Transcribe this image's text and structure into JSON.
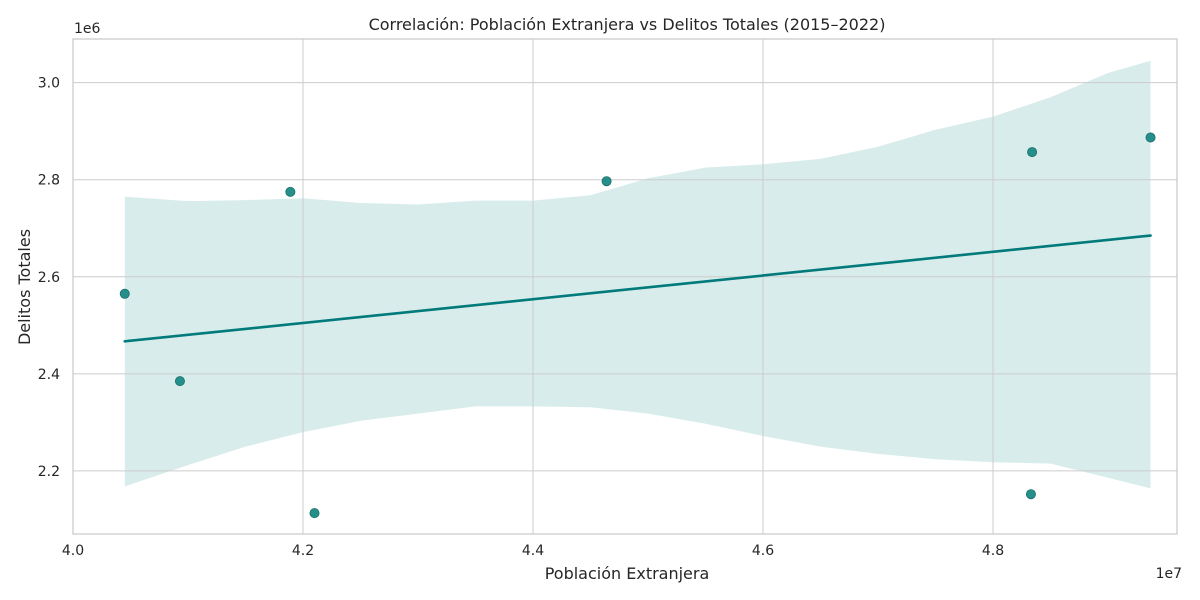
{
  "chart_data": {
    "type": "scatter",
    "title": "Correlación: Población Extranjera vs Delitos Totales (2015–2022)",
    "xlabel": "Población Extranjera",
    "ylabel": "Delitos Totales",
    "x_offset_label": "1e7",
    "y_offset_label": "1e6",
    "xlim": [
      40000000,
      49600000
    ],
    "ylim": [
      2070000,
      3090000
    ],
    "grid": true,
    "x_ticks": [
      {
        "value": 40000000,
        "label": "4.0"
      },
      {
        "value": 42000000,
        "label": "4.2"
      },
      {
        "value": 44000000,
        "label": "4.4"
      },
      {
        "value": 46000000,
        "label": "4.6"
      },
      {
        "value": 48000000,
        "label": "4.8"
      }
    ],
    "y_ticks": [
      {
        "value": 2200000,
        "label": "2.2"
      },
      {
        "value": 2400000,
        "label": "2.4"
      },
      {
        "value": 2600000,
        "label": "2.6"
      },
      {
        "value": 2800000,
        "label": "2.8"
      },
      {
        "value": 3000000,
        "label": "3.0"
      }
    ],
    "points": [
      {
        "x": 40450000,
        "y": 2565000
      },
      {
        "x": 40930000,
        "y": 2385000
      },
      {
        "x": 41890000,
        "y": 2775000
      },
      {
        "x": 42100000,
        "y": 2113000
      },
      {
        "x": 44640000,
        "y": 2797000
      },
      {
        "x": 48330000,
        "y": 2152000
      },
      {
        "x": 48340000,
        "y": 2857000
      },
      {
        "x": 49370000,
        "y": 2887000
      }
    ],
    "regression": {
      "x": [
        40450000,
        49370000
      ],
      "y": [
        2467000,
        2685000
      ]
    },
    "confidence_band": {
      "x": [
        40450000,
        41000000,
        41500000,
        42000000,
        42500000,
        43000000,
        43500000,
        44000000,
        44500000,
        45000000,
        45500000,
        46000000,
        46500000,
        47000000,
        47500000,
        48000000,
        48500000,
        49000000,
        49370000
      ],
      "upper": [
        2765000,
        2756000,
        2758000,
        2762000,
        2752000,
        2749000,
        2757000,
        2757000,
        2768000,
        2803000,
        2825000,
        2832000,
        2843000,
        2868000,
        2903000,
        2930000,
        2970000,
        3020000,
        3045000
      ],
      "lower": [
        2168000,
        2212000,
        2250000,
        2280000,
        2303000,
        2318000,
        2333000,
        2333000,
        2331000,
        2318000,
        2297000,
        2272000,
        2250000,
        2235000,
        2224000,
        2218000,
        2215000,
        2186000,
        2164000
      ]
    },
    "colors": {
      "point": "#258f8a",
      "line": "#007a7a",
      "band": "#d6ebea",
      "grid": "#cccccc",
      "spine": "#c8c8c8"
    }
  }
}
